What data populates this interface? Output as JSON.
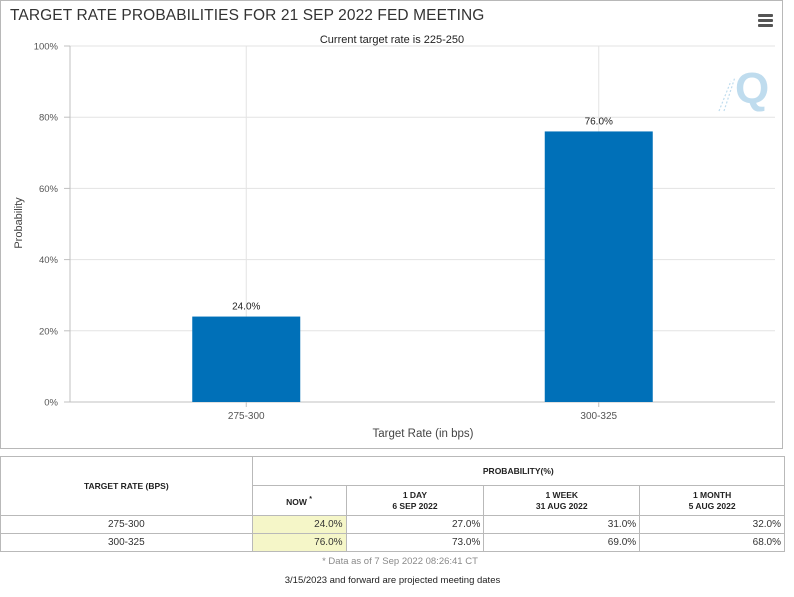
{
  "title": "TARGET RATE PROBABILITIES FOR 21 SEP 2022 FED MEETING",
  "chart_data": {
    "type": "bar",
    "title": "TARGET RATE PROBABILITIES FOR 21 SEP 2022 FED MEETING",
    "subtitle": "Current target rate is 225-250",
    "xlabel": "Target Rate (in bps)",
    "ylabel": "Probability",
    "categories": [
      "275-300",
      "300-325"
    ],
    "values": [
      24.0,
      76.0
    ],
    "data_labels": [
      "24.0%",
      "76.0%"
    ],
    "ylim": [
      0,
      100
    ],
    "yticks": [
      0,
      20,
      40,
      60,
      80,
      100
    ],
    "ytick_labels": [
      "0%",
      "20%",
      "40%",
      "60%",
      "80%",
      "100%"
    ],
    "grid": true,
    "bar_color": "#0070b8"
  },
  "table": {
    "header_rate": "TARGET RATE (BPS)",
    "header_prob": "PROBABILITY(%)",
    "col_now": "NOW",
    "col_now_mark": "*",
    "col_1day": [
      "1 DAY",
      "6 SEP 2022"
    ],
    "col_1week": [
      "1 WEEK",
      "31 AUG 2022"
    ],
    "col_1month": [
      "1 MONTH",
      "5 AUG 2022"
    ],
    "rows": [
      {
        "rate": "275-300",
        "now": "24.0%",
        "day": "27.0%",
        "week": "31.0%",
        "month": "32.0%"
      },
      {
        "rate": "300-325",
        "now": "76.0%",
        "day": "73.0%",
        "week": "69.0%",
        "month": "68.0%"
      }
    ]
  },
  "data_as_of": "* Data as of 7 Sep 2022 08:26:41 CT",
  "footer_note": "3/15/2023 and forward are projected meeting dates",
  "colors": {
    "bar": "#0070b8",
    "now_highlight": "#f5f6c8",
    "watermark": "#bfdcee"
  }
}
